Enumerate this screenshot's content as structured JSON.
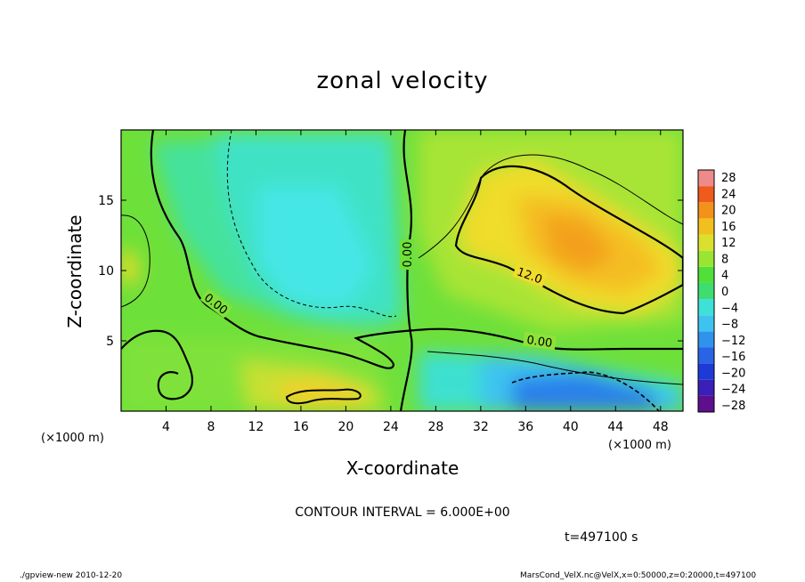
{
  "footer": {
    "program": "./gpview-new  2010-12-20",
    "source": "MarsCond_VelX.nc@VelX,x=0:50000,z=0:20000,t=497100"
  },
  "contour_interval_text": "CONTOUR INTERVAL = 6.000E+00",
  "time_text": "t=497100 s",
  "x_unit_left": "(×1000 m)",
  "x_unit_right": "(×1000 m)",
  "contour_labels": [
    "0.00",
    "0.00",
    "0.00",
    "12.0"
  ],
  "chart_data": {
    "type": "heatmap",
    "title": "zonal velocity",
    "xlabel": "X-coordinate",
    "ylabel": "Z-coordinate",
    "x_unit": "×1000 m",
    "xlim": [
      0,
      50
    ],
    "ylim": [
      0,
      20
    ],
    "x_ticks": [
      4,
      8,
      12,
      16,
      20,
      24,
      28,
      32,
      36,
      40,
      44,
      48
    ],
    "y_ticks": [
      5,
      10,
      15
    ],
    "colorbar": {
      "levels": [
        -28,
        -24,
        -20,
        -16,
        -12,
        -8,
        -4,
        0,
        4,
        8,
        12,
        16,
        20,
        24,
        28
      ],
      "tick_labels": [
        "28",
        "24",
        "20",
        "16",
        "12",
        "8",
        "4",
        "0",
        "−4",
        "−8",
        "−12",
        "−16",
        "−20",
        "−24",
        "−28"
      ],
      "colors": [
        "#5e0f8c",
        "#3a1fb8",
        "#1e3ad6",
        "#2a63e6",
        "#2f93ee",
        "#3ec3f0",
        "#3ee0d8",
        "#3fdc72",
        "#4fe03a",
        "#9ae432",
        "#dbe02e",
        "#f2c01e",
        "#f3921a",
        "#ef5a1d",
        "#ee8a8a"
      ]
    },
    "features": [
      {
        "label": "easterly core upper center",
        "x": 16,
        "z": 13,
        "value": -12
      },
      {
        "label": "westerly jet upper right",
        "x": 40,
        "z": 12,
        "value": 16
      },
      {
        "label": "easterly core lower right",
        "x": 40,
        "z": 1.5,
        "value": -18
      },
      {
        "label": "westerly blob lower center",
        "x": 19,
        "z": 1.5,
        "value": 14
      },
      {
        "label": "westerly edge left",
        "x": 0.5,
        "z": 10.5,
        "value": 13
      }
    ]
  }
}
